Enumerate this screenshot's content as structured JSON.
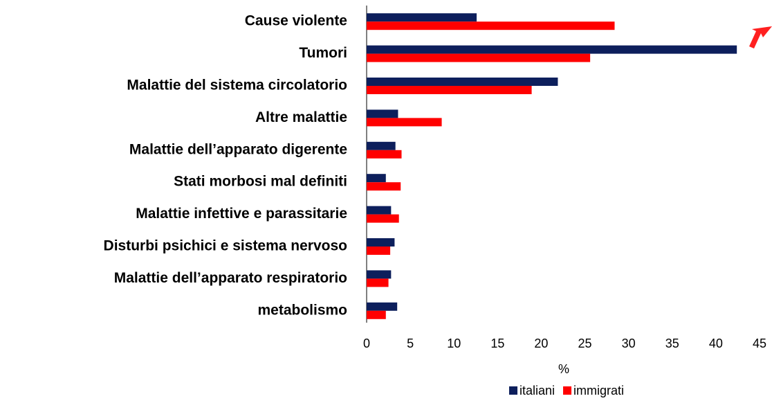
{
  "chart_data": {
    "type": "bar",
    "orientation": "horizontal",
    "categories": [
      "Cause violente",
      "Tumori",
      "Malattie del sistema circolatorio",
      "Altre malattie",
      "Malattie dell’apparato digerente",
      "Stati morbosi mal definiti",
      "Malattie infettive e parassitarie",
      "Disturbi psichici e sistema nervoso",
      "Malattie dell’apparato respiratorio",
      "metabolismo"
    ],
    "series": [
      {
        "name": "italiani",
        "color": "#0d1f5c",
        "values": [
          12.6,
          42.4,
          21.9,
          3.6,
          3.3,
          2.2,
          2.8,
          3.2,
          2.8,
          3.5
        ]
      },
      {
        "name": "immigrati",
        "color": "#ff0000",
        "values": [
          28.4,
          25.6,
          18.9,
          8.6,
          4.0,
          3.9,
          3.7,
          2.7,
          2.5,
          2.2
        ]
      }
    ],
    "xlabel": "%",
    "xlim": [
      0,
      45
    ],
    "xticks": [
      0,
      5,
      10,
      15,
      20,
      25,
      30,
      35,
      40,
      45
    ],
    "grid": false,
    "legend": "bottom"
  }
}
